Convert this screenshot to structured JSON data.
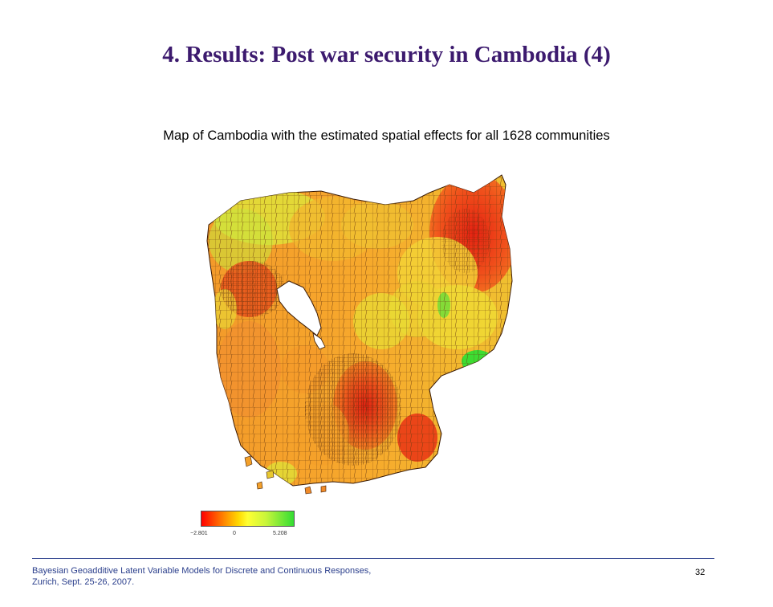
{
  "slide": {
    "title": "4.  Results:  Post war security in Cambodia (4)",
    "subtitle": "Map of Cambodia with the estimated spatial effects for all 1628 communities"
  },
  "map": {
    "legend": {
      "min_label": "−2.801",
      "mid_label": "0",
      "max_label": "5.208",
      "colors": [
        "#ff0000",
        "#ff8a00",
        "#ffd800",
        "#ffff33",
        "#c8f53b",
        "#33dd33"
      ]
    }
  },
  "footer": {
    "citation_line1": "Bayesian Geoadditive Latent Variable Models for Discrete and Continuous Responses,",
    "citation_line2": "Zurich, Sept. 25-26, 2007.",
    "page_number": "32",
    "line_color": "#2b3f8c"
  }
}
